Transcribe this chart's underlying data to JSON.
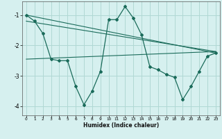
{
  "xlabel": "Humidex (Indice chaleur)",
  "ylabel": "",
  "bg_color": "#d6f0ef",
  "grid_color": "#b0d8d4",
  "line_color": "#1a6b5a",
  "xlim": [
    -0.5,
    23.5
  ],
  "ylim": [
    -4.3,
    -0.55
  ],
  "yticks": [
    -4,
    -3,
    -2,
    -1
  ],
  "xticks": [
    0,
    1,
    2,
    3,
    4,
    5,
    6,
    7,
    8,
    9,
    10,
    11,
    12,
    13,
    14,
    15,
    16,
    17,
    18,
    19,
    20,
    21,
    22,
    23
  ],
  "series1_x": [
    0,
    1,
    2,
    3,
    4,
    5,
    6,
    7,
    8,
    9,
    10,
    11,
    12,
    13,
    14,
    15,
    16,
    17,
    18,
    19,
    20,
    21,
    22,
    23
  ],
  "series1_y": [
    -1.0,
    -1.2,
    -1.6,
    -2.45,
    -2.5,
    -2.5,
    -3.35,
    -3.95,
    -3.5,
    -2.85,
    -1.15,
    -1.15,
    -0.72,
    -1.1,
    -1.65,
    -2.7,
    -2.8,
    -2.95,
    -3.05,
    -3.78,
    -3.35,
    -2.85,
    -2.35,
    -2.25
  ],
  "line2_x": [
    0,
    23
  ],
  "line2_y": [
    -1.0,
    -2.25
  ],
  "line3_x": [
    0,
    23
  ],
  "line3_y": [
    -1.2,
    -2.2
  ],
  "line4_x": [
    0,
    23
  ],
  "line4_y": [
    -2.45,
    -2.2
  ]
}
